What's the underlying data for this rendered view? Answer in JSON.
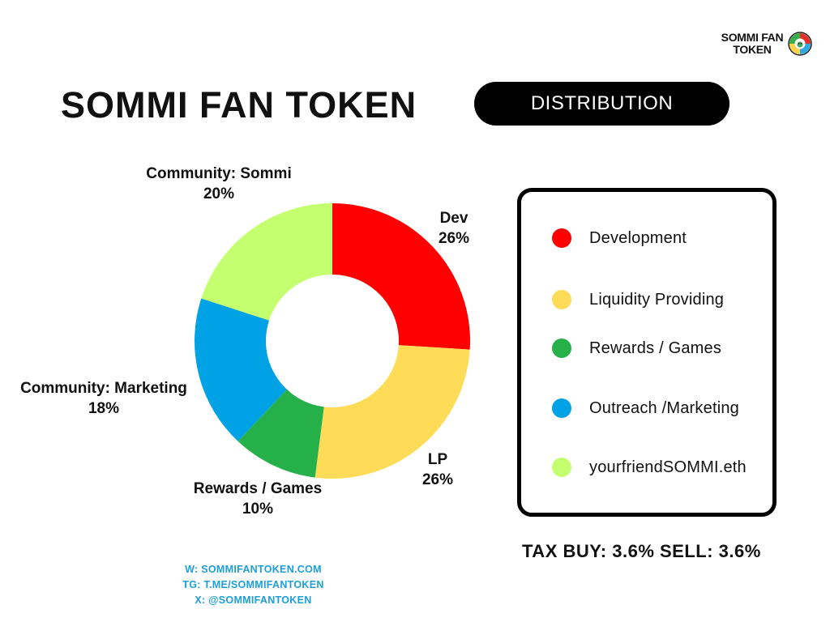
{
  "brand": {
    "line1": "SOMMI FAN",
    "line2": "TOKEN",
    "logo_icon": "sommi-badge-icon"
  },
  "header": {
    "title": "SOMMI FAN TOKEN",
    "badge": "DISTRIBUTION"
  },
  "chart_data": {
    "type": "pie",
    "title": "",
    "categories": [
      "Dev",
      "LP",
      "Rewards / Games",
      "Community: Marketing",
      "Community: Sommi"
    ],
    "values": [
      26,
      26,
      10,
      18,
      20
    ],
    "display": [
      "26%",
      "26%",
      "10%",
      "18%",
      "20%"
    ],
    "colors": [
      "#ff0000",
      "#fedc58",
      "#25b04a",
      "#00a2e6",
      "#c3ff6e"
    ]
  },
  "legend": {
    "items": [
      {
        "label": "Development",
        "color": "#ff0000"
      },
      {
        "label": "Liquidity Providing",
        "color": "#fedc58"
      },
      {
        "label": "Rewards / Games",
        "color": "#25b04a"
      },
      {
        "label": "Outreach /Marketing",
        "color": "#00a2e6"
      },
      {
        "label": "yourfriendSOMMI.eth",
        "color": "#c3ff6e"
      }
    ]
  },
  "tax": {
    "text": "TAX BUY: 3.6% SELL: 3.6%"
  },
  "contact": {
    "website": "W: SOMMIFANTOKEN.COM",
    "telegram": "TG: T.ME/SOMMIFANTOKEN",
    "x": "X: @SOMMIFANTOKEN",
    "color": "#1c9fd8"
  }
}
